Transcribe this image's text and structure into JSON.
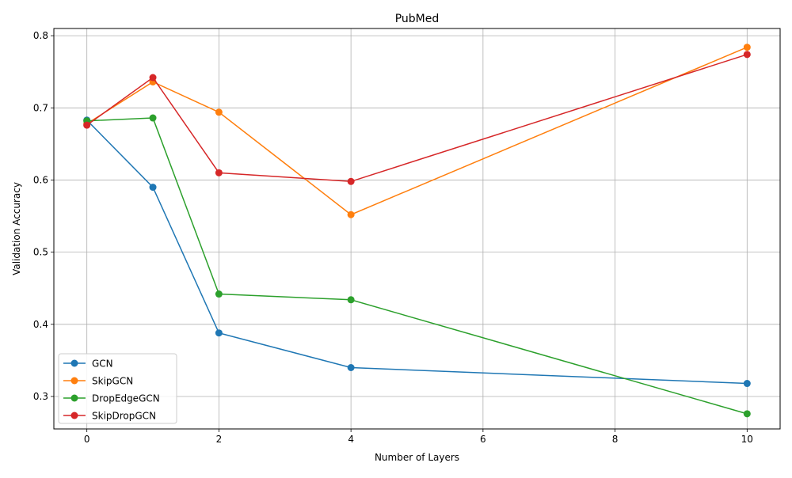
{
  "chart_data": {
    "type": "line",
    "title": "PubMed",
    "xlabel": "Number of Layers",
    "ylabel": "Validation Accuracy",
    "x": [
      0,
      1,
      2,
      4,
      10
    ],
    "xlim": [
      -0.5,
      10.5
    ],
    "ylim": [
      0.255,
      0.81
    ],
    "xticks": [
      0,
      2,
      4,
      6,
      8,
      10
    ],
    "yticks": [
      0.3,
      0.4,
      0.5,
      0.6,
      0.7,
      0.8
    ],
    "grid": true,
    "legend_position": "lower-left",
    "marker": "circle",
    "series": [
      {
        "name": "GCN",
        "color": "#1f77b4",
        "values": [
          0.683,
          0.59,
          0.388,
          0.34,
          0.318
        ]
      },
      {
        "name": "SkipGCN",
        "color": "#ff7f0e",
        "values": [
          0.678,
          0.736,
          0.694,
          0.552,
          0.784
        ]
      },
      {
        "name": "DropEdgeGCN",
        "color": "#2ca02c",
        "values": [
          0.682,
          0.686,
          0.442,
          0.434,
          0.276
        ]
      },
      {
        "name": "SkipDropGCN",
        "color": "#d62728",
        "values": [
          0.676,
          0.742,
          0.61,
          0.598,
          0.774
        ]
      }
    ]
  }
}
